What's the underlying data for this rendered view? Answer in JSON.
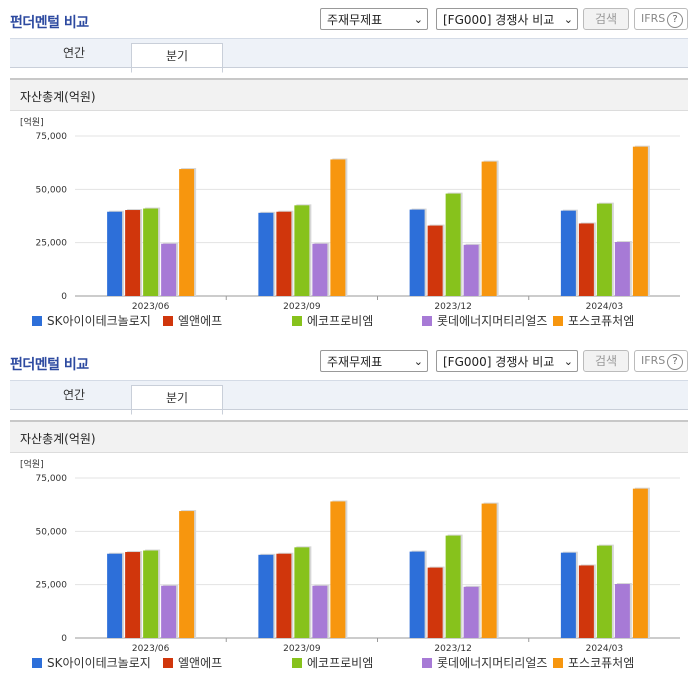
{
  "panels": [
    {
      "title": "펀더멘털 비교",
      "statement_select": "주재무제표",
      "compare_select": "[FG000] 경쟁사 비교",
      "search_label": "검색",
      "ifrs_label": "IFRS",
      "ifrs_help": "?",
      "tabs": [
        {
          "label": "연간"
        },
        {
          "label": "분기"
        }
      ],
      "section_title": "자산총계(억원)"
    },
    {
      "title": "펀더멘털 비교",
      "statement_select": "주재무제표",
      "compare_select": "[FG000] 경쟁사 비교",
      "search_label": "검색",
      "ifrs_label": "IFRS",
      "ifrs_help": "?",
      "tabs": [
        {
          "label": "연간"
        },
        {
          "label": "분기"
        }
      ],
      "section_title": "자산총계(억원)"
    }
  ],
  "colors": {
    "accent": "#2d4aa0",
    "series": [
      "#2d6fd9",
      "#d0360c",
      "#87c21c",
      "#a77ad6",
      "#f7960e"
    ]
  },
  "chart_data": [
    {
      "type": "bar",
      "unit_label": "[억원]",
      "categories": [
        "2023/06",
        "2023/09",
        "2023/12",
        "2024/03"
      ],
      "ylim": [
        0,
        75000
      ],
      "yticks": [
        0,
        25000,
        50000,
        75000
      ],
      "ytick_labels": [
        "0",
        "25,000",
        "50,000",
        "75,000"
      ],
      "grid": true,
      "legend_position": "bottom",
      "series": [
        {
          "name": "SK아이이테크놀로지",
          "values": [
            39500,
            39000,
            40500,
            40000
          ]
        },
        {
          "name": "엘앤에프",
          "values": [
            40300,
            39500,
            33000,
            34000
          ]
        },
        {
          "name": "에코프로비엠",
          "values": [
            41000,
            42500,
            48000,
            43300
          ]
        },
        {
          "name": "롯데에너지머티리얼즈",
          "values": [
            24500,
            24500,
            24000,
            25300
          ]
        },
        {
          "name": "포스코퓨처엠",
          "values": [
            59500,
            64000,
            63000,
            70000
          ]
        }
      ]
    },
    {
      "type": "bar",
      "unit_label": "[억원]",
      "categories": [
        "2023/06",
        "2023/09",
        "2023/12",
        "2024/03"
      ],
      "ylim": [
        0,
        75000
      ],
      "yticks": [
        0,
        25000,
        50000,
        75000
      ],
      "ytick_labels": [
        "0",
        "25,000",
        "50,000",
        "75,000"
      ],
      "grid": true,
      "legend_position": "bottom",
      "series": [
        {
          "name": "SK아이이테크놀로지",
          "values": [
            39500,
            39000,
            40500,
            40000
          ]
        },
        {
          "name": "엘앤에프",
          "values": [
            40300,
            39500,
            33000,
            34000
          ]
        },
        {
          "name": "에코프로비엠",
          "values": [
            41000,
            42500,
            48000,
            43300
          ]
        },
        {
          "name": "롯데에너지머티리얼즈",
          "values": [
            24500,
            24500,
            24000,
            25300
          ]
        },
        {
          "name": "포스코퓨처엠",
          "values": [
            59500,
            64000,
            63000,
            70000
          ]
        }
      ]
    }
  ]
}
